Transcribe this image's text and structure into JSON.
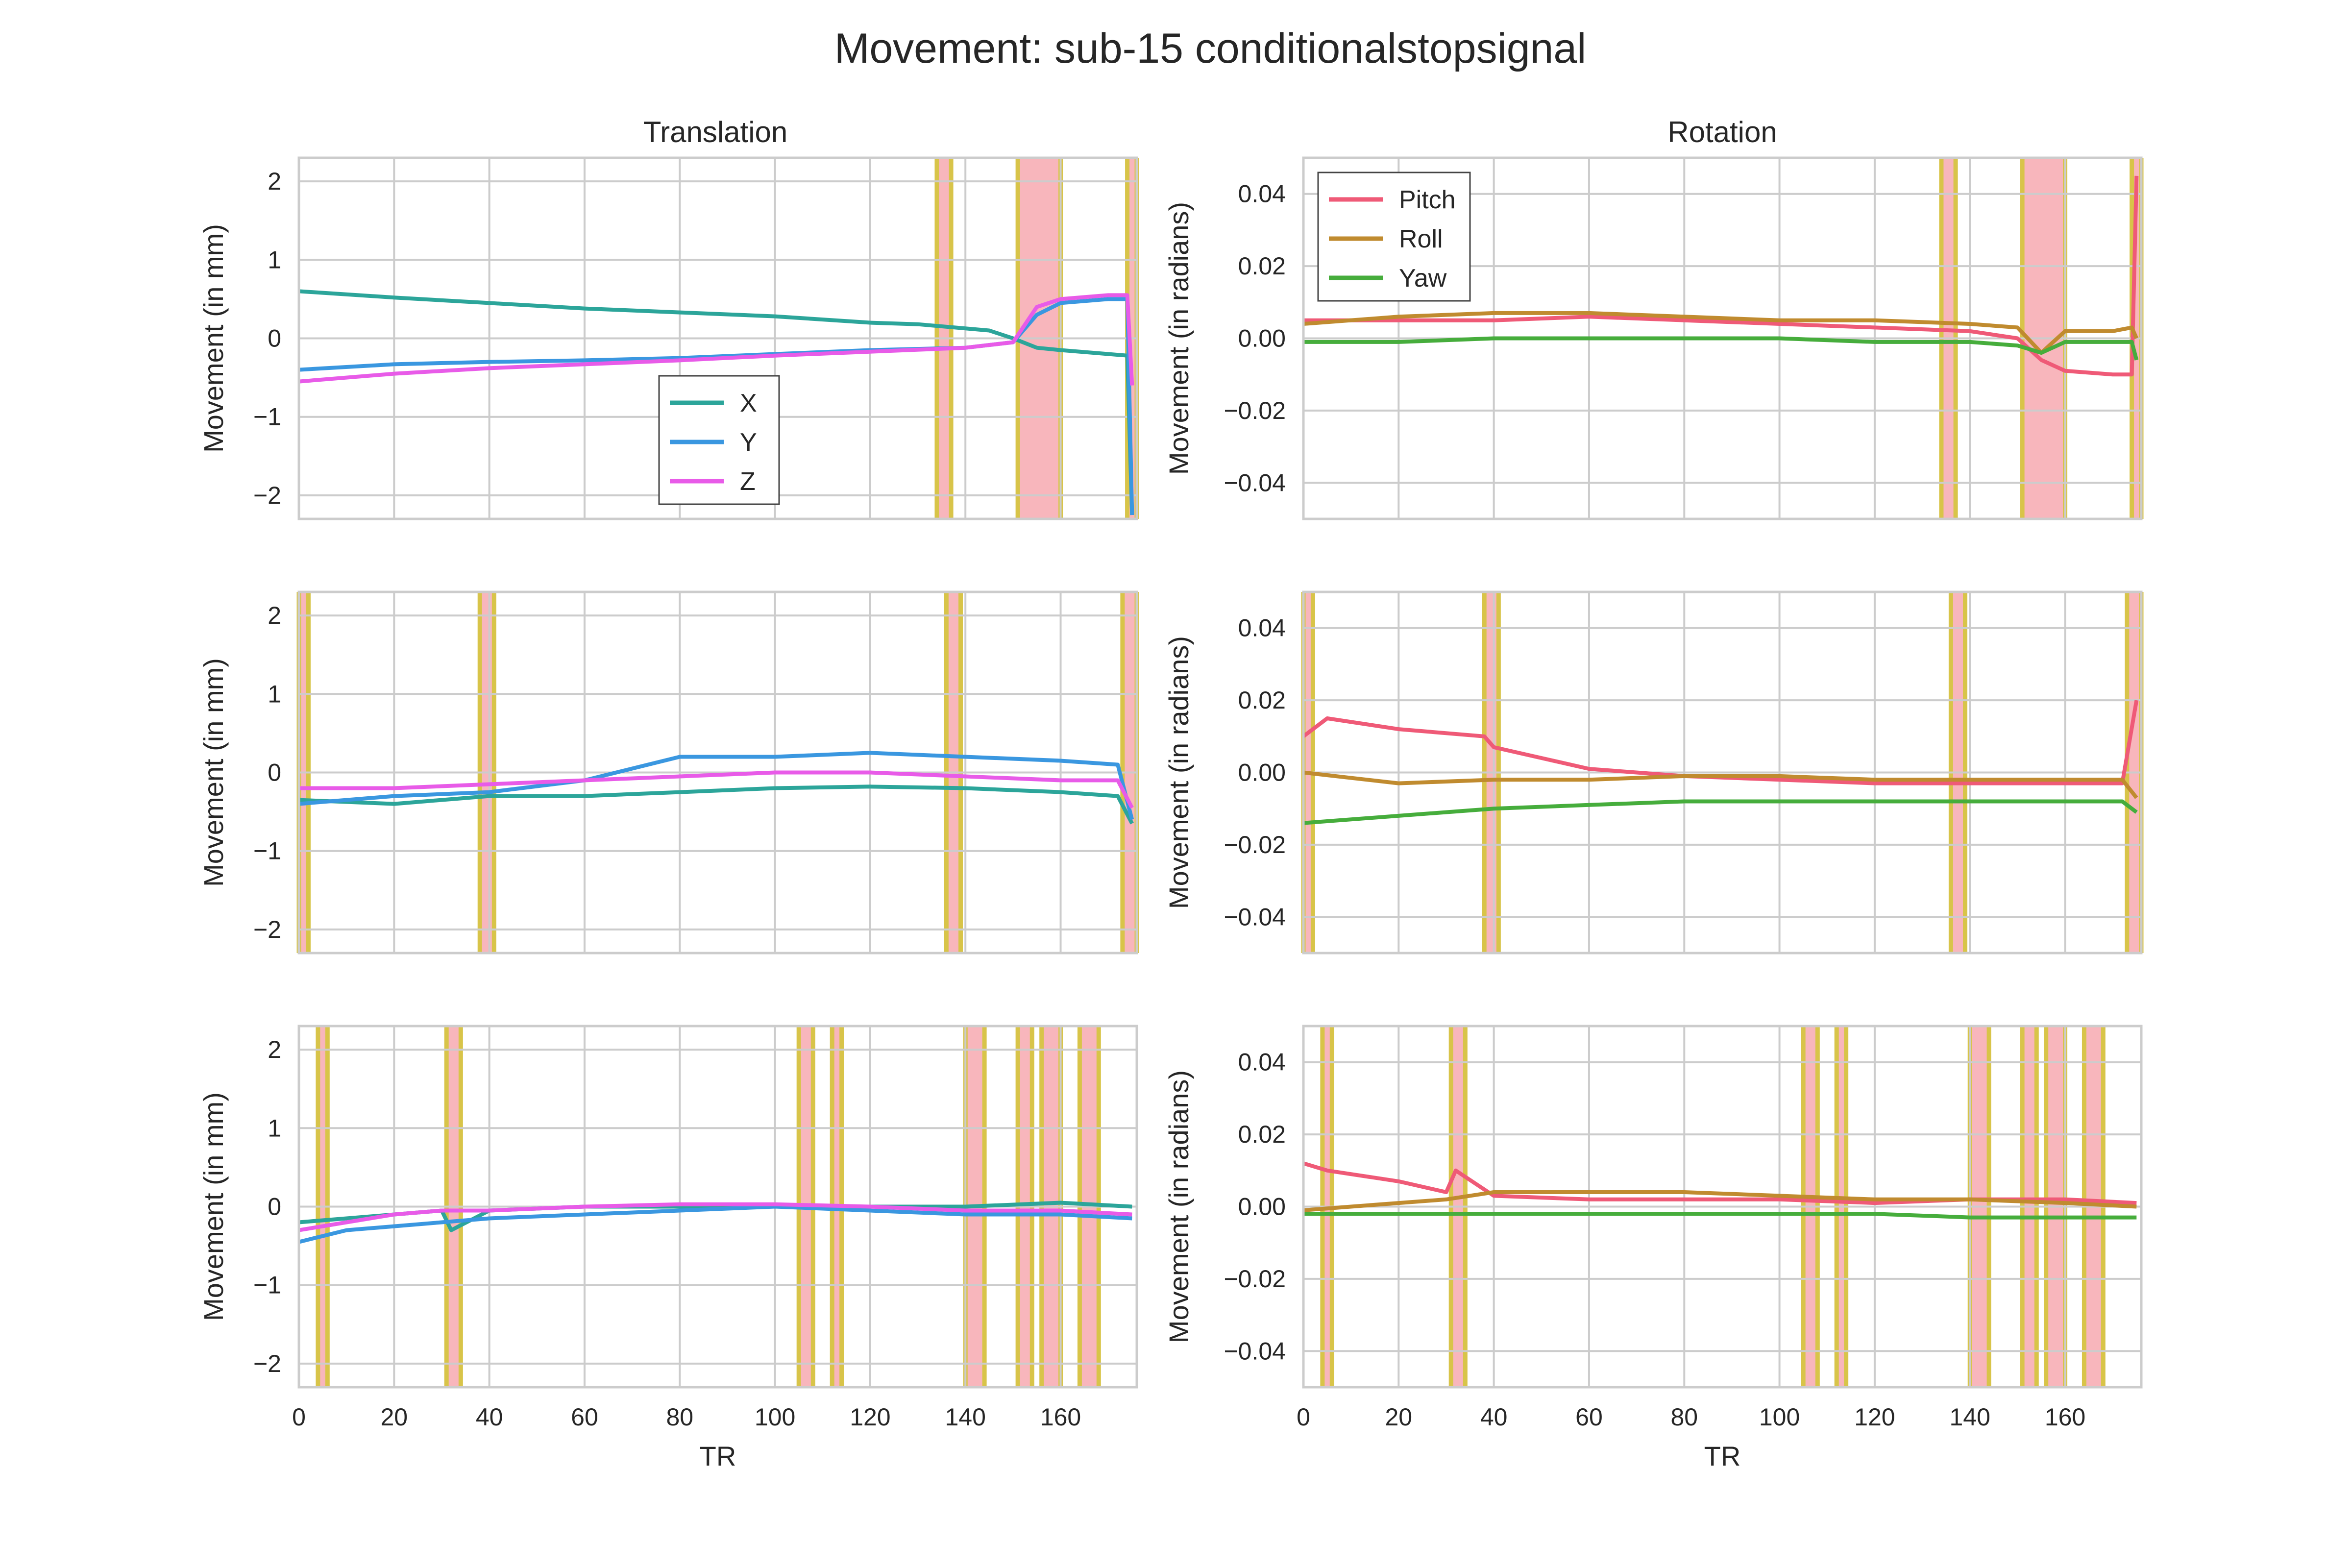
{
  "title": "Movement: sub-15 conditionalstopsignal",
  "columns": [
    "Translation",
    "Rotation"
  ],
  "xlabel": "TR",
  "ylabel_translation": "Movement (in mm)",
  "ylabel_rotation": "Movement (in radians)",
  "colors": {
    "X": "#2ca59a",
    "Y": "#3a97e0",
    "Z": "#e85be8",
    "Pitch": "#ef5a77",
    "Roll": "#c08b2f",
    "Yaw": "#46ad3c",
    "highlight": "#f7a9b0",
    "highlight_edge": "#d8c449",
    "grid": "#cccccc"
  },
  "chart_data": [
    {
      "type": "line",
      "panel": "translation-run-1",
      "xlim": [
        0,
        176
      ],
      "ylim": [
        -2.3,
        2.3
      ],
      "yticks": [
        2,
        1,
        0,
        -1,
        -2
      ],
      "xticks": [
        0,
        20,
        40,
        60,
        80,
        100,
        120,
        140,
        160
      ],
      "legend": "lower-center",
      "highlights": [
        [
          134,
          137
        ],
        [
          151,
          160
        ],
        [
          174,
          176
        ]
      ],
      "series": [
        {
          "name": "X",
          "x": [
            0,
            20,
            40,
            60,
            80,
            100,
            120,
            130,
            145,
            150,
            155,
            160,
            170,
            174,
            175
          ],
          "y": [
            0.6,
            0.52,
            0.45,
            0.38,
            0.33,
            0.28,
            0.2,
            0.18,
            0.1,
            0.0,
            -0.12,
            -0.15,
            -0.2,
            -0.22,
            -2.25
          ]
        },
        {
          "name": "Y",
          "x": [
            0,
            20,
            40,
            60,
            80,
            100,
            120,
            140,
            150,
            155,
            160,
            170,
            174,
            175
          ],
          "y": [
            -0.4,
            -0.33,
            -0.3,
            -0.28,
            -0.25,
            -0.2,
            -0.15,
            -0.12,
            -0.05,
            0.3,
            0.45,
            0.5,
            0.5,
            -2.25
          ]
        },
        {
          "name": "Z",
          "x": [
            0,
            20,
            40,
            60,
            80,
            100,
            120,
            140,
            150,
            155,
            160,
            170,
            174,
            175
          ],
          "y": [
            -0.55,
            -0.45,
            -0.38,
            -0.33,
            -0.28,
            -0.22,
            -0.17,
            -0.12,
            -0.05,
            0.4,
            0.5,
            0.55,
            0.55,
            -0.6
          ]
        }
      ]
    },
    {
      "type": "line",
      "panel": "rotation-run-1",
      "xlim": [
        0,
        176
      ],
      "ylim": [
        -0.05,
        0.05
      ],
      "yticks": [
        0.04,
        0.02,
        0.0,
        -0.02,
        -0.04
      ],
      "xticks": [
        0,
        20,
        40,
        60,
        80,
        100,
        120,
        140,
        160
      ],
      "legend": "upper-left",
      "highlights": [
        [
          134,
          137
        ],
        [
          151,
          160
        ],
        [
          174,
          176
        ]
      ],
      "series": [
        {
          "name": "Pitch",
          "x": [
            0,
            20,
            40,
            60,
            80,
            100,
            120,
            140,
            150,
            155,
            160,
            170,
            174,
            175
          ],
          "y": [
            0.005,
            0.005,
            0.005,
            0.006,
            0.005,
            0.004,
            0.003,
            0.002,
            0.0,
            -0.006,
            -0.009,
            -0.01,
            -0.01,
            0.045
          ]
        },
        {
          "name": "Roll",
          "x": [
            0,
            20,
            40,
            60,
            80,
            100,
            120,
            140,
            150,
            155,
            160,
            170,
            174,
            175
          ],
          "y": [
            0.004,
            0.006,
            0.007,
            0.007,
            0.006,
            0.005,
            0.005,
            0.004,
            0.003,
            -0.004,
            0.002,
            0.002,
            0.003,
            0.0
          ]
        },
        {
          "name": "Yaw",
          "x": [
            0,
            20,
            40,
            60,
            80,
            100,
            120,
            140,
            150,
            155,
            160,
            170,
            174,
            175
          ],
          "y": [
            -0.001,
            -0.001,
            0.0,
            0.0,
            0.0,
            0.0,
            -0.001,
            -0.001,
            -0.002,
            -0.004,
            -0.001,
            -0.001,
            -0.001,
            -0.006
          ]
        }
      ]
    },
    {
      "type": "line",
      "panel": "translation-run-2",
      "xlim": [
        0,
        176
      ],
      "ylim": [
        -2.3,
        2.3
      ],
      "yticks": [
        2,
        1,
        0,
        -1,
        -2
      ],
      "xticks": [
        0,
        20,
        40,
        60,
        80,
        100,
        120,
        140,
        160
      ],
      "highlights": [
        [
          0,
          2
        ],
        [
          38,
          41
        ],
        [
          136,
          139
        ],
        [
          173,
          176
        ]
      ],
      "series": [
        {
          "name": "X",
          "x": [
            0,
            20,
            40,
            60,
            80,
            100,
            120,
            140,
            160,
            172,
            175
          ],
          "y": [
            -0.35,
            -0.4,
            -0.3,
            -0.3,
            -0.25,
            -0.2,
            -0.18,
            -0.2,
            -0.25,
            -0.3,
            -0.65
          ]
        },
        {
          "name": "Y",
          "x": [
            0,
            20,
            40,
            60,
            80,
            100,
            120,
            140,
            160,
            172,
            175
          ],
          "y": [
            -0.4,
            -0.3,
            -0.25,
            -0.1,
            0.2,
            0.2,
            0.25,
            0.2,
            0.15,
            0.1,
            -0.6
          ]
        },
        {
          "name": "Z",
          "x": [
            0,
            20,
            40,
            60,
            80,
            100,
            120,
            140,
            160,
            172,
            175
          ],
          "y": [
            -0.2,
            -0.2,
            -0.15,
            -0.1,
            -0.05,
            0.0,
            0.0,
            -0.05,
            -0.1,
            -0.1,
            -0.45
          ]
        }
      ]
    },
    {
      "type": "line",
      "panel": "rotation-run-2",
      "xlim": [
        0,
        176
      ],
      "ylim": [
        -0.05,
        0.05
      ],
      "yticks": [
        0.04,
        0.02,
        0.0,
        -0.02,
        -0.04
      ],
      "xticks": [
        0,
        20,
        40,
        60,
        80,
        100,
        120,
        140,
        160
      ],
      "highlights": [
        [
          0,
          2
        ],
        [
          38,
          41
        ],
        [
          136,
          139
        ],
        [
          173,
          176
        ]
      ],
      "series": [
        {
          "name": "Pitch",
          "x": [
            0,
            5,
            20,
            38,
            40,
            50,
            60,
            80,
            100,
            120,
            140,
            160,
            172,
            175
          ],
          "y": [
            0.01,
            0.015,
            0.012,
            0.01,
            0.007,
            0.004,
            0.001,
            -0.001,
            -0.002,
            -0.003,
            -0.003,
            -0.003,
            -0.003,
            0.02
          ]
        },
        {
          "name": "Roll",
          "x": [
            0,
            20,
            40,
            60,
            80,
            100,
            120,
            140,
            160,
            172,
            175
          ],
          "y": [
            0.0,
            -0.003,
            -0.002,
            -0.002,
            -0.001,
            -0.001,
            -0.002,
            -0.002,
            -0.002,
            -0.002,
            -0.007
          ]
        },
        {
          "name": "Yaw",
          "x": [
            0,
            20,
            40,
            60,
            80,
            100,
            120,
            140,
            160,
            172,
            175
          ],
          "y": [
            -0.014,
            -0.012,
            -0.01,
            -0.009,
            -0.008,
            -0.008,
            -0.008,
            -0.008,
            -0.008,
            -0.008,
            -0.011
          ]
        }
      ]
    },
    {
      "type": "line",
      "panel": "translation-run-3",
      "xlim": [
        0,
        176
      ],
      "ylim": [
        -2.3,
        2.3
      ],
      "yticks": [
        2,
        1,
        0,
        -1,
        -2
      ],
      "xticks": [
        0,
        20,
        40,
        60,
        80,
        100,
        120,
        140,
        160
      ],
      "highlights": [
        [
          4,
          6
        ],
        [
          31,
          34
        ],
        [
          105,
          108
        ],
        [
          112,
          114
        ],
        [
          140,
          144
        ],
        [
          151,
          154
        ],
        [
          156,
          160
        ],
        [
          164,
          168
        ]
      ],
      "series": [
        {
          "name": "X",
          "x": [
            0,
            10,
            20,
            30,
            32,
            40,
            60,
            80,
            100,
            120,
            140,
            160,
            175
          ],
          "y": [
            -0.2,
            -0.15,
            -0.1,
            -0.05,
            -0.3,
            -0.05,
            0.0,
            0.0,
            0.0,
            0.0,
            0.0,
            0.05,
            0.0
          ]
        },
        {
          "name": "Y",
          "x": [
            0,
            10,
            20,
            30,
            40,
            60,
            80,
            100,
            120,
            140,
            160,
            175
          ],
          "y": [
            -0.45,
            -0.3,
            -0.25,
            -0.2,
            -0.15,
            -0.1,
            -0.05,
            0.0,
            -0.05,
            -0.1,
            -0.1,
            -0.15
          ]
        },
        {
          "name": "Z",
          "x": [
            0,
            10,
            20,
            30,
            40,
            60,
            80,
            100,
            120,
            140,
            160,
            175
          ],
          "y": [
            -0.3,
            -0.2,
            -0.1,
            -0.05,
            -0.05,
            0.0,
            0.03,
            0.03,
            0.0,
            -0.05,
            -0.05,
            -0.1
          ]
        }
      ]
    },
    {
      "type": "line",
      "panel": "rotation-run-3",
      "xlim": [
        0,
        176
      ],
      "ylim": [
        -0.05,
        0.05
      ],
      "yticks": [
        0.04,
        0.02,
        0.0,
        -0.02,
        -0.04
      ],
      "xticks": [
        0,
        20,
        40,
        60,
        80,
        100,
        120,
        140,
        160
      ],
      "xlabel": "TR",
      "highlights": [
        [
          4,
          6
        ],
        [
          31,
          34
        ],
        [
          105,
          108
        ],
        [
          112,
          114
        ],
        [
          140,
          144
        ],
        [
          151,
          154
        ],
        [
          156,
          160
        ],
        [
          164,
          168
        ]
      ],
      "series": [
        {
          "name": "Pitch",
          "x": [
            0,
            5,
            20,
            30,
            32,
            40,
            60,
            80,
            100,
            120,
            140,
            160,
            175
          ],
          "y": [
            0.012,
            0.01,
            0.007,
            0.004,
            0.01,
            0.003,
            0.002,
            0.002,
            0.002,
            0.001,
            0.002,
            0.002,
            0.001
          ]
        },
        {
          "name": "Roll",
          "x": [
            0,
            10,
            20,
            30,
            40,
            60,
            80,
            100,
            120,
            140,
            160,
            175
          ],
          "y": [
            -0.001,
            0.0,
            0.001,
            0.002,
            0.004,
            0.004,
            0.004,
            0.003,
            0.002,
            0.002,
            0.001,
            0.0
          ]
        },
        {
          "name": "Yaw",
          "x": [
            0,
            20,
            40,
            60,
            80,
            100,
            120,
            140,
            160,
            175
          ],
          "y": [
            -0.002,
            -0.002,
            -0.002,
            -0.002,
            -0.002,
            -0.002,
            -0.002,
            -0.003,
            -0.003,
            -0.003
          ]
        }
      ]
    }
  ]
}
